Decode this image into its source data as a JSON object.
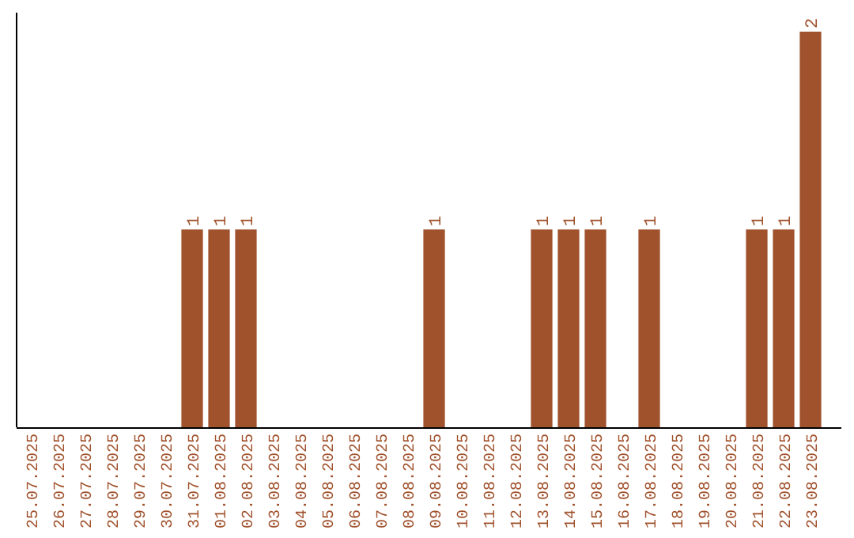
{
  "chart_data": {
    "type": "bar",
    "categories": [
      "25.07.2025",
      "26.07.2025",
      "27.07.2025",
      "28.07.2025",
      "29.07.2025",
      "30.07.2025",
      "31.07.2025",
      "01.08.2025",
      "02.08.2025",
      "03.08.2025",
      "04.08.2025",
      "05.08.2025",
      "06.08.2025",
      "07.08.2025",
      "08.08.2025",
      "09.08.2025",
      "10.08.2025",
      "11.08.2025",
      "12.08.2025",
      "13.08.2025",
      "14.08.2025",
      "15.08.2025",
      "16.08.2025",
      "17.08.2025",
      "18.08.2025",
      "19.08.2025",
      "20.08.2025",
      "21.08.2025",
      "22.08.2025",
      "23.08.2025"
    ],
    "values": [
      0,
      0,
      0,
      0,
      0,
      0,
      1,
      1,
      1,
      0,
      0,
      0,
      0,
      0,
      0,
      1,
      0,
      0,
      0,
      1,
      1,
      1,
      0,
      1,
      0,
      0,
      0,
      1,
      1,
      2
    ],
    "value_labels": [
      null,
      null,
      null,
      null,
      null,
      null,
      "1",
      "1",
      "1",
      null,
      null,
      null,
      null,
      null,
      null,
      "1",
      null,
      null,
      null,
      "1",
      "1",
      "1",
      null,
      "1",
      null,
      null,
      null,
      "1",
      "1",
      "2"
    ],
    "color": "#a0522d",
    "ylim": [
      0,
      2
    ],
    "tick_labels": "x"
  }
}
